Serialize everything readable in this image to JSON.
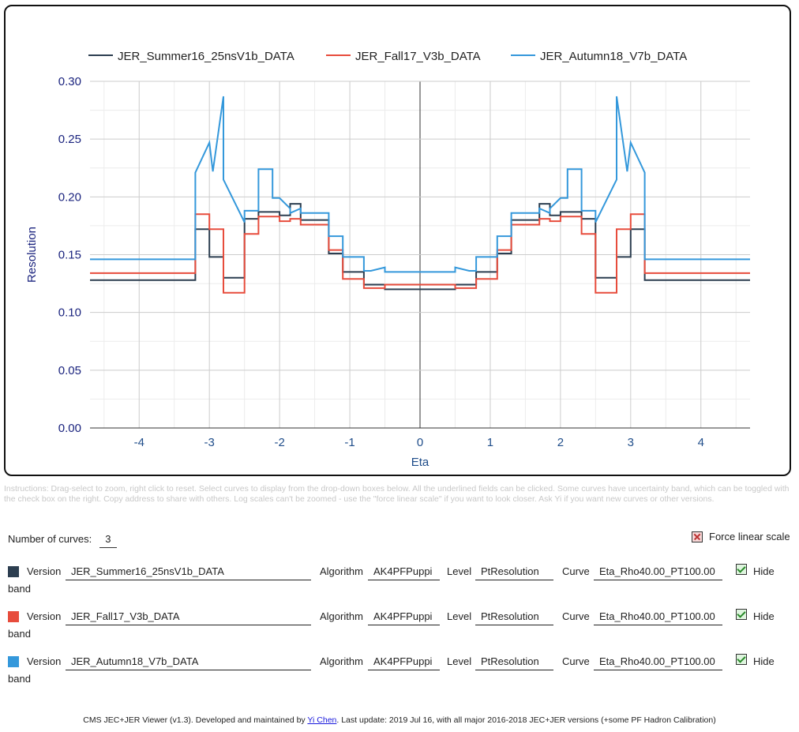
{
  "chart_data": {
    "type": "line",
    "xlabel": "Eta",
    "ylabel": "Resolution",
    "xlim": [
      -4.7,
      4.7
    ],
    "ylim": [
      0,
      0.3
    ],
    "xticks": [
      -4,
      -3,
      -2,
      -1,
      0,
      1,
      2,
      3,
      4
    ],
    "xtick_labels": [
      "-4",
      "-3",
      "-2",
      "-1",
      "0",
      "1",
      "2",
      "3",
      "4"
    ],
    "yticks": [
      0,
      0.05,
      0.1,
      0.15,
      0.2,
      0.25,
      0.3
    ],
    "ytick_labels": [
      "0.00",
      "0.05",
      "0.10",
      "0.15",
      "0.20",
      "0.25",
      "0.30"
    ],
    "grid": true,
    "legend_position": "top",
    "series": [
      {
        "name": "JER_Summer16_25nsV1b_DATA",
        "color": "#2c3e50",
        "x": [
          0,
          0.5,
          0.5,
          0.8,
          0.8,
          1.1,
          1.1,
          1.3,
          1.3,
          1.7,
          1.7,
          1.85,
          1.85,
          2.0,
          2.0,
          2.1,
          2.1,
          2.3,
          2.3,
          2.5,
          2.5,
          2.8,
          2.8,
          3.0,
          3.0,
          3.2,
          3.2,
          4.7
        ],
        "y": [
          0.12,
          0.12,
          0.124,
          0.124,
          0.135,
          0.135,
          0.151,
          0.151,
          0.18,
          0.18,
          0.194,
          0.194,
          0.184,
          0.184,
          0.187,
          0.187,
          0.187,
          0.187,
          0.181,
          0.181,
          0.13,
          0.13,
          0.148,
          0.148,
          0.172,
          0.172,
          0.128,
          0.128
        ]
      },
      {
        "name": "JER_Fall17_V3b_DATA",
        "color": "#e74c3c",
        "x": [
          0,
          0.5,
          0.5,
          0.8,
          0.8,
          1.1,
          1.1,
          1.3,
          1.3,
          1.7,
          1.7,
          1.85,
          1.85,
          2.0,
          2.0,
          2.1,
          2.1,
          2.3,
          2.3,
          2.5,
          2.5,
          2.8,
          2.8,
          3.0,
          3.0,
          3.2,
          3.2,
          4.7
        ],
        "y": [
          0.124,
          0.124,
          0.121,
          0.121,
          0.129,
          0.129,
          0.154,
          0.154,
          0.176,
          0.176,
          0.181,
          0.181,
          0.179,
          0.179,
          0.183,
          0.183,
          0.183,
          0.183,
          0.168,
          0.168,
          0.117,
          0.117,
          0.172,
          0.172,
          0.185,
          0.185,
          0.134,
          0.134
        ]
      },
      {
        "name": "JER_Autumn18_V7b_DATA",
        "color": "#3498db",
        "x": [
          0,
          0.5,
          0.5,
          0.7,
          0.8,
          0.8,
          1.1,
          1.1,
          1.3,
          1.3,
          1.7,
          1.7,
          1.85,
          1.85,
          2.0,
          2.1,
          2.1,
          2.3,
          2.3,
          2.5,
          2.5,
          2.8,
          2.8,
          2.95,
          3.0,
          3.2,
          3.2,
          4.7
        ],
        "y": [
          0.135,
          0.135,
          0.139,
          0.136,
          0.136,
          0.148,
          0.148,
          0.166,
          0.166,
          0.186,
          0.186,
          0.19,
          0.186,
          0.19,
          0.199,
          0.199,
          0.224,
          0.224,
          0.188,
          0.188,
          0.178,
          0.215,
          0.287,
          0.222,
          0.247,
          0.221,
          0.146,
          0.146
        ]
      }
    ]
  },
  "instructions": "Instructions: Drag-select to zoom, right click to reset. Select curves to display from the drop-down boxes below. All the underlined fields can be clicked. Some curves have uncertainty band, which can be toggled with the check box on the right. Copy address to share with others. Log scales can't be zoomed - use the \"force linear scale\" if you want to look closer. Ask Yi if you want new curves or other versions.",
  "controls": {
    "count_label": "Number of curves:",
    "count_value": "3",
    "force_linear_label": "Force linear scale"
  },
  "curves": [
    {
      "version_label": "Version",
      "version": "JER_Summer16_25nsV1b_DATA",
      "algorithm_label": "Algorithm",
      "algorithm": "AK4PFPuppi",
      "level_label": "Level",
      "level": "PtResolution",
      "curve_label": "Curve",
      "curve": "Eta_Rho40.00_PT100.00",
      "hide_label": "Hide",
      "band_label": "band",
      "color": "#2c3e50"
    },
    {
      "version_label": "Version",
      "version": "JER_Fall17_V3b_DATA",
      "algorithm_label": "Algorithm",
      "algorithm": "AK4PFPuppi",
      "level_label": "Level",
      "level": "PtResolution",
      "curve_label": "Curve",
      "curve": "Eta_Rho40.00_PT100.00",
      "hide_label": "Hide",
      "band_label": "band",
      "color": "#e74c3c"
    },
    {
      "version_label": "Version",
      "version": "JER_Autumn18_V7b_DATA",
      "algorithm_label": "Algorithm",
      "algorithm": "AK4PFPuppi",
      "level_label": "Level",
      "level": "PtResolution",
      "curve_label": "Curve",
      "curve": "Eta_Rho40.00_PT100.00",
      "hide_label": "Hide",
      "band_label": "band",
      "color": "#3498db"
    }
  ],
  "footer": {
    "prefix": "CMS JEC+JER Viewer (v1.3). Developed and maintained by ",
    "author": "Yi Chen",
    "suffix": ". Last update: 2019 Jul 16, with all major 2016-2018 JEC+JER versions (+some PF Hadron Calibration)"
  }
}
